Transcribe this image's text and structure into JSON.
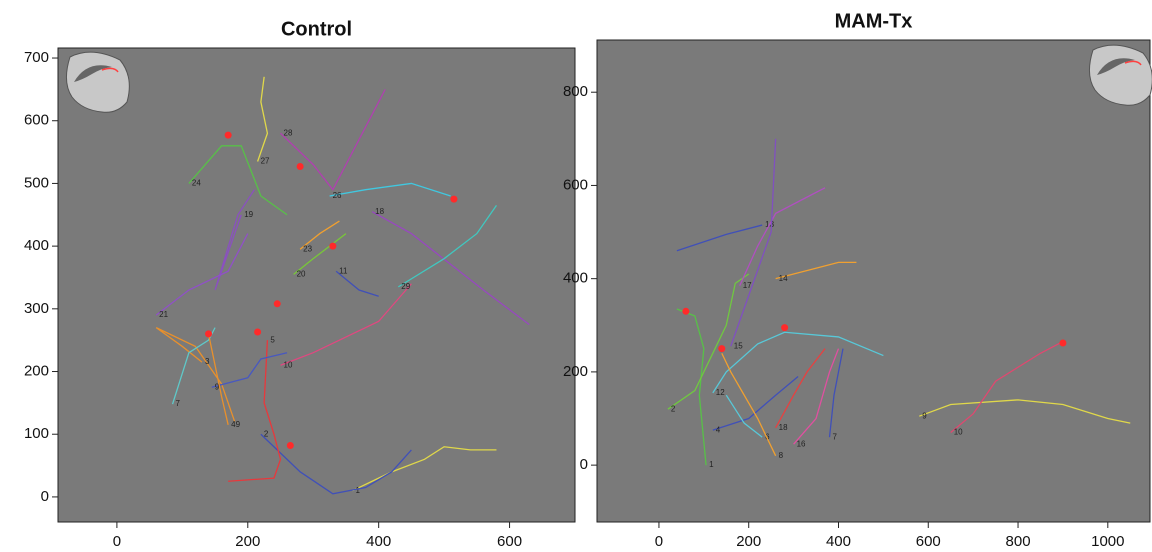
{
  "chart_data": [
    {
      "type": "line",
      "title": "Control",
      "xlim": [
        -90,
        700
      ],
      "ylim": [
        -40,
        716
      ],
      "xticks": [
        0,
        200,
        400,
        600
      ],
      "yticks": [
        0,
        100,
        200,
        300,
        400,
        500,
        600,
        700
      ],
      "series": [
        {
          "name": "1",
          "color": "#e0d84a",
          "x": [
            360,
            420,
            470,
            500,
            540,
            580
          ],
          "y": [
            10,
            40,
            60,
            80,
            75,
            75
          ]
        },
        {
          "name": "2",
          "color": "#4050b8",
          "x": [
            220,
            280,
            330,
            380,
            420,
            450
          ],
          "y": [
            100,
            40,
            5,
            15,
            40,
            75
          ]
        },
        {
          "name": "5",
          "color": "#e8383c",
          "x": [
            230,
            225,
            240,
            250,
            240,
            170
          ],
          "y": [
            250,
            150,
            100,
            60,
            30,
            25
          ]
        },
        {
          "name": "3",
          "color": "#e8902c",
          "x": [
            130,
            100,
            60,
            120,
            160,
            180
          ],
          "y": [
            215,
            240,
            270,
            240,
            180,
            120
          ]
        },
        {
          "name": "7",
          "color": "#5fc8c8",
          "x": [
            85,
            110,
            140,
            150
          ],
          "y": [
            148,
            230,
            250,
            270
          ]
        },
        {
          "name": "10",
          "color": "#e04880",
          "x": [
            250,
            300,
            400,
            450
          ],
          "y": [
            210,
            230,
            280,
            340
          ]
        },
        {
          "name": "19",
          "color": "#8a50c0",
          "x": [
            190,
            150,
            185,
            210
          ],
          "y": [
            450,
            330,
            450,
            490
          ]
        },
        {
          "name": "21",
          "color": "#9050c8",
          "x": [
            60,
            110,
            170,
            200
          ],
          "y": [
            290,
            330,
            360,
            420
          ]
        },
        {
          "name": "24",
          "color": "#58c048",
          "x": [
            110,
            160,
            190,
            220,
            260
          ],
          "y": [
            500,
            560,
            560,
            480,
            450
          ]
        },
        {
          "name": "27",
          "color": "#e0d84a",
          "x": [
            215,
            230,
            220,
            225
          ],
          "y": [
            535,
            580,
            630,
            670
          ]
        },
        {
          "name": "28",
          "color": "#b040b0",
          "x": [
            250,
            300,
            330,
            410
          ],
          "y": [
            580,
            530,
            490,
            650
          ]
        },
        {
          "name": "26",
          "color": "#40c8e0",
          "x": [
            325,
            380,
            450,
            510
          ],
          "y": [
            480,
            490,
            500,
            480
          ]
        },
        {
          "name": "18",
          "color": "#9848c0",
          "x": [
            390,
            450,
            560,
            630
          ],
          "y": [
            455,
            420,
            330,
            275
          ]
        },
        {
          "name": "23",
          "color": "#f0a030",
          "x": [
            280,
            310,
            340
          ],
          "y": [
            395,
            420,
            440
          ]
        },
        {
          "name": "20",
          "color": "#78c838",
          "x": [
            270,
            300,
            350
          ],
          "y": [
            355,
            380,
            420
          ]
        },
        {
          "name": "11",
          "color": "#4050b8",
          "x": [
            335,
            370,
            400
          ],
          "y": [
            360,
            330,
            320
          ]
        },
        {
          "name": "29",
          "color": "#40c8c0",
          "x": [
            430,
            500,
            550,
            580
          ],
          "y": [
            335,
            380,
            420,
            465
          ]
        },
        {
          "name": "9",
          "color": "#4858c0",
          "x": [
            145,
            200,
            220,
            260
          ],
          "y": [
            175,
            190,
            220,
            230
          ]
        },
        {
          "name": "49",
          "color": "#e8902c",
          "x": [
            170,
            160,
            150,
            140
          ],
          "y": [
            115,
            160,
            210,
            260
          ]
        }
      ],
      "markers": {
        "color": "#ff2a2a",
        "x": [
          170,
          280,
          330,
          245,
          140,
          215,
          265,
          515
        ],
        "y": [
          577,
          527,
          400,
          308,
          260,
          263,
          82,
          475
        ]
      }
    },
    {
      "type": "line",
      "title": "MAM-Tx",
      "xlim": [
        -138,
        1094
      ],
      "ylim": [
        -122,
        912
      ],
      "xticks": [
        0,
        200,
        400,
        600,
        800,
        1000
      ],
      "yticks": [
        0,
        200,
        400,
        600,
        800
      ],
      "series": [
        {
          "name": "1",
          "color": "#58c048",
          "x": [
            105,
            90,
            100,
            80,
            40
          ],
          "y": [
            0,
            150,
            250,
            320,
            335
          ]
        },
        {
          "name": "2",
          "color": "#70c840",
          "x": [
            20,
            80,
            150,
            170,
            200
          ],
          "y": [
            120,
            160,
            300,
            390,
            410
          ]
        },
        {
          "name": "13",
          "color": "#4050b8",
          "x": [
            230,
            150,
            40
          ],
          "y": [
            515,
            495,
            460
          ]
        },
        {
          "name": "17",
          "color": "#b050c0",
          "x": [
            180,
            220,
            260,
            340,
            370
          ],
          "y": [
            385,
            470,
            540,
            580,
            595
          ]
        },
        {
          "name": "15",
          "color": "#8050c0",
          "x": [
            160,
            250,
            260
          ],
          "y": [
            255,
            500,
            700
          ]
        },
        {
          "name": "14",
          "color": "#f0a030",
          "x": [
            260,
            340,
            400,
            440
          ],
          "y": [
            400,
            420,
            435,
            435
          ]
        },
        {
          "name": "12",
          "color": "#58c8d8",
          "x": [
            120,
            150,
            220,
            280,
            400,
            500
          ],
          "y": [
            155,
            200,
            260,
            285,
            275,
            235
          ]
        },
        {
          "name": "4",
          "color": "#4050b8",
          "x": [
            120,
            200,
            260,
            310
          ],
          "y": [
            75,
            100,
            150,
            190
          ]
        },
        {
          "name": "6",
          "color": "#58c8d8",
          "x": [
            230,
            190,
            150
          ],
          "y": [
            60,
            90,
            150
          ]
        },
        {
          "name": "8",
          "color": "#f0a030",
          "x": [
            260,
            220,
            160,
            140
          ],
          "y": [
            20,
            100,
            200,
            240
          ]
        },
        {
          "name": "18",
          "color": "#e84040",
          "x": [
            260,
            300,
            330,
            370
          ],
          "y": [
            80,
            150,
            200,
            250
          ]
        },
        {
          "name": "16",
          "color": "#e050a0",
          "x": [
            300,
            350,
            380,
            400
          ],
          "y": [
            45,
            100,
            200,
            250
          ]
        },
        {
          "name": "7",
          "color": "#4050b8",
          "x": [
            380,
            390,
            410
          ],
          "y": [
            60,
            150,
            250
          ]
        },
        {
          "name": "9",
          "color": "#e0d84a",
          "x": [
            580,
            650,
            800,
            900,
            1000,
            1050
          ],
          "y": [
            105,
            130,
            140,
            130,
            100,
            90
          ]
        },
        {
          "name": "10",
          "color": "#e04870",
          "x": [
            650,
            700,
            750,
            850,
            900
          ],
          "y": [
            70,
            110,
            180,
            240,
            265
          ]
        }
      ],
      "markers": {
        "color": "#ff2a2a",
        "x": [
          60,
          140,
          280,
          900
        ],
        "y": [
          330,
          250,
          295,
          262
        ]
      }
    }
  ]
}
